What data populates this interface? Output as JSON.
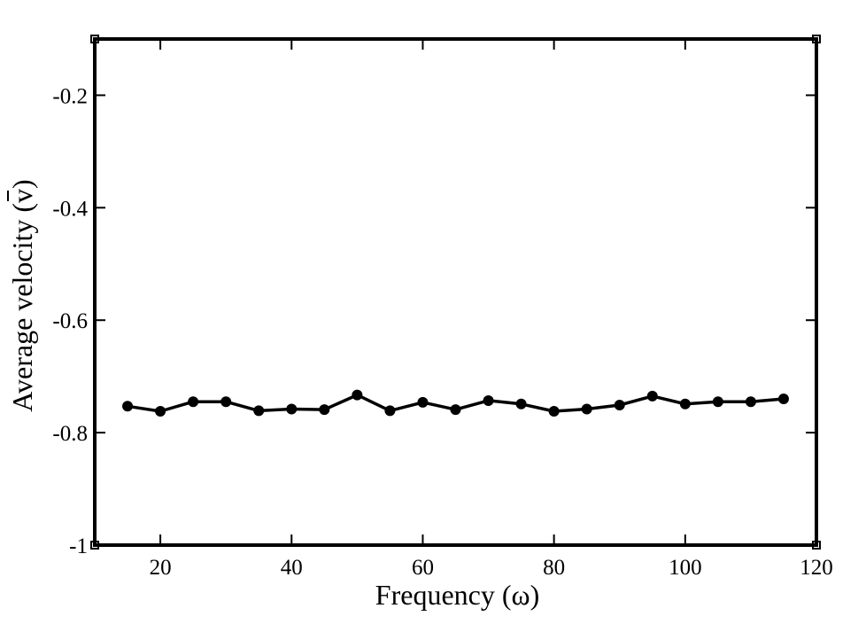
{
  "chart_data": {
    "type": "line",
    "title": "",
    "xlabel": "Frequency (ω)",
    "ylabel": "Average velocity (v)",
    "ylabel_overbar_char": "v",
    "xlim": [
      10,
      120
    ],
    "ylim": [
      -1,
      -0.1
    ],
    "xticks": [
      20,
      40,
      60,
      80,
      100,
      120
    ],
    "xtick_labels": [
      "20",
      "40",
      "60",
      "80",
      "100",
      "120"
    ],
    "yticks": [
      -0.2,
      -0.4,
      -0.6,
      -0.8,
      -1
    ],
    "ytick_labels": [
      "-0.2",
      "-0.4",
      "-0.6",
      "-0.8",
      "-1"
    ],
    "grid": false,
    "series": [
      {
        "color": "#000000",
        "marker": "circle",
        "x": [
          15,
          20,
          25,
          30,
          35,
          40,
          45,
          50,
          55,
          60,
          65,
          70,
          75,
          80,
          85,
          90,
          95,
          100,
          105,
          110,
          115
        ],
        "y": [
          -0.753,
          -0.762,
          -0.745,
          -0.745,
          -0.761,
          -0.758,
          -0.759,
          -0.733,
          -0.761,
          -0.746,
          -0.759,
          -0.743,
          -0.749,
          -0.762,
          -0.758,
          -0.751,
          -0.735,
          -0.749,
          -0.745,
          -0.745,
          -0.74
        ]
      }
    ]
  }
}
